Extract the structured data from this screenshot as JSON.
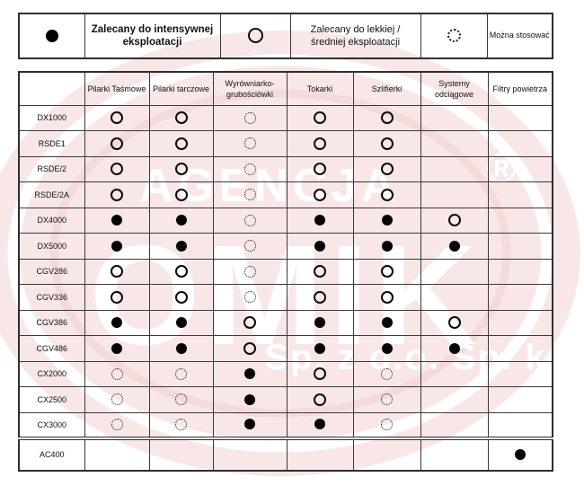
{
  "legend": {
    "items": [
      {
        "symbol": "filled",
        "label": "Zalecany do intensywnej eksploatacji"
      },
      {
        "symbol": "open",
        "label": "Zalecany do lekkiej / średniej eksploatacji"
      },
      {
        "symbol": "dotted",
        "label": "Można stosować"
      }
    ]
  },
  "table": {
    "columns": [
      "Pilarki Taśmowe",
      "Pilarki tarczowe",
      "Wyrówniarko-grubościówki",
      "Tokarki",
      "Szlifierki",
      "Systemy odciągowe",
      "Filtry powietrza"
    ],
    "rows": [
      {
        "name": "DX1000",
        "cells": [
          "open",
          "open",
          "dotted",
          "open",
          "open",
          "",
          ""
        ]
      },
      {
        "name": "RSDE1",
        "cells": [
          "open",
          "open",
          "dotted",
          "open",
          "open",
          "",
          ""
        ]
      },
      {
        "name": "RSDE/2",
        "cells": [
          "open",
          "open",
          "dotted",
          "open",
          "open",
          "",
          ""
        ]
      },
      {
        "name": "RSDE/2A",
        "cells": [
          "open",
          "open",
          "dotted",
          "open",
          "open",
          "",
          ""
        ]
      },
      {
        "name": "DX4000",
        "cells": [
          "filled",
          "filled",
          "dotted",
          "filled",
          "filled",
          "open",
          ""
        ]
      },
      {
        "name": "DX5000",
        "cells": [
          "filled",
          "filled",
          "dotted",
          "filled",
          "filled",
          "filled",
          ""
        ]
      },
      {
        "name": "CGV286",
        "cells": [
          "open",
          "open",
          "dotted",
          "open",
          "open",
          "",
          ""
        ]
      },
      {
        "name": "CGV336",
        "cells": [
          "open",
          "open",
          "dotted",
          "open",
          "open",
          "",
          ""
        ]
      },
      {
        "name": "CGV386",
        "cells": [
          "filled",
          "filled",
          "open",
          "filled",
          "filled",
          "open",
          ""
        ]
      },
      {
        "name": "CGV486",
        "cells": [
          "filled",
          "filled",
          "open",
          "filled",
          "filled",
          "filled",
          ""
        ]
      },
      {
        "name": "CX2000",
        "cells": [
          "dotted",
          "dotted",
          "filled",
          "open",
          "dotted",
          "",
          ""
        ]
      },
      {
        "name": "CX2500",
        "cells": [
          "dotted",
          "dotted",
          "filled",
          "open",
          "dotted",
          "",
          ""
        ]
      },
      {
        "name": "CX3000",
        "cells": [
          "dotted",
          "dotted",
          "filled",
          "filled",
          "dotted",
          "",
          ""
        ]
      },
      {
        "name": "AC400",
        "cells": [
          "",
          "",
          "",
          "",
          "",
          "",
          "filled"
        ],
        "separator_top": true
      }
    ]
  },
  "watermark": {
    "agencja": "AGENCJA",
    "omik": "OMIK",
    "registered": "®",
    "company_suffix": "Sp. z o.o. Sp. k.",
    "blob_color": "#f9e7e7",
    "ring_color": "#f4dada",
    "text_color": "#ffffff"
  },
  "colors": {
    "symbol": "#000000",
    "border": "#3a3a3a",
    "background": "#ffffff"
  }
}
